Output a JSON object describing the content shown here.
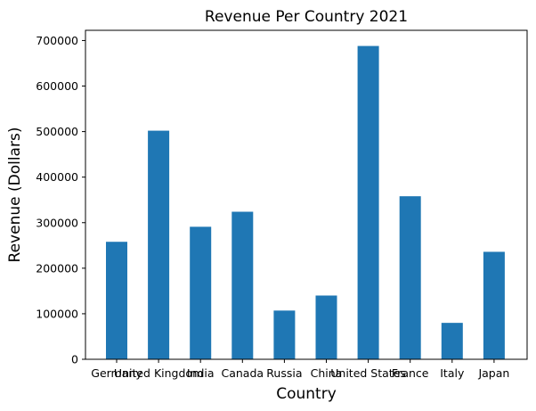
{
  "chart_data": {
    "type": "bar",
    "title": "Revenue Per Country 2021",
    "xlabel": "Country",
    "ylabel": "Revenue (Dollars)",
    "categories": [
      "Germany",
      "United Kingdom",
      "India",
      "Canada",
      "Russia",
      "China",
      "United States",
      "France",
      "Italy",
      "Japan"
    ],
    "values": [
      258000,
      502000,
      291000,
      324000,
      107000,
      140000,
      688000,
      358000,
      80000,
      236000
    ],
    "ylim": [
      0,
      722400
    ],
    "yticks": [
      0,
      100000,
      200000,
      300000,
      400000,
      500000,
      600000,
      700000
    ],
    "ytick_labels": [
      "0",
      "100000",
      "200000",
      "300000",
      "400000",
      "500000",
      "600000",
      "700000"
    ],
    "bar_color": "#1f77b4",
    "grid": false,
    "legend": "none"
  }
}
